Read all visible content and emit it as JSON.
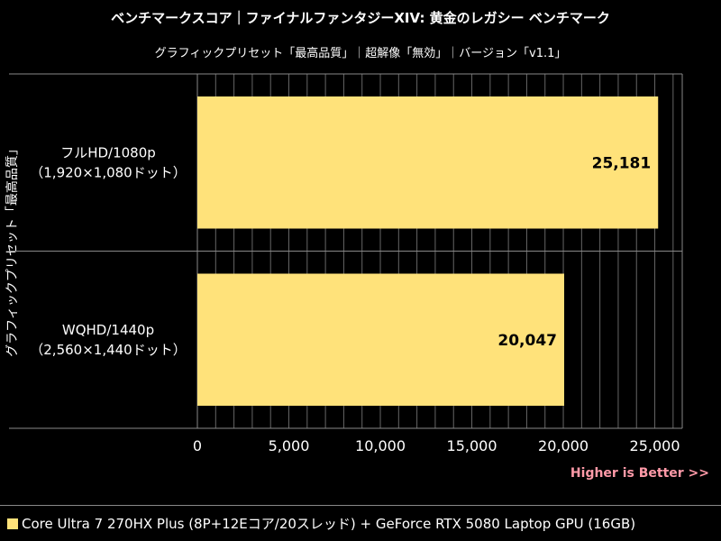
{
  "chart_data": {
    "type": "bar",
    "orientation": "horizontal",
    "title": "ベンチマークスコア｜ファイナルファンタジーXIV: 黄金のレガシー ベンチマーク",
    "subtitle": "グラフィックプリセット「最高品質」｜超解像「無効」｜バージョン「v1.1」",
    "ylabel": "グラフィックプリセット「最高品質」",
    "categories": [
      [
        "フルHD/1080p",
        "（1,920×1,080ドット）"
      ],
      [
        "WQHD/1440p",
        "（2,560×1,440ドット）"
      ]
    ],
    "values": [
      25181,
      20047
    ],
    "value_labels": [
      "25,181",
      "20,047"
    ],
    "xlim": [
      0,
      26500
    ],
    "xticks": [
      0,
      5000,
      10000,
      15000,
      20000,
      25000
    ],
    "xtick_labels": [
      "0",
      "5,000",
      "10,000",
      "15,000",
      "20,000",
      "25,000"
    ],
    "note": "Higher is Better >>",
    "grid": true,
    "legend_placement": "bottom",
    "series": [
      {
        "name": "Core Ultra 7 270HX Plus (8P+12Eコア/20スレッド) + GeForce RTX 5080 Laptop GPU (16GB)",
        "color": "#ffe27a",
        "values": [
          25181,
          20047
        ]
      }
    ]
  },
  "colors": {
    "bar": "#ffe27a",
    "background": "#000000",
    "grid": "#888888",
    "note": "#ff9aa8"
  }
}
